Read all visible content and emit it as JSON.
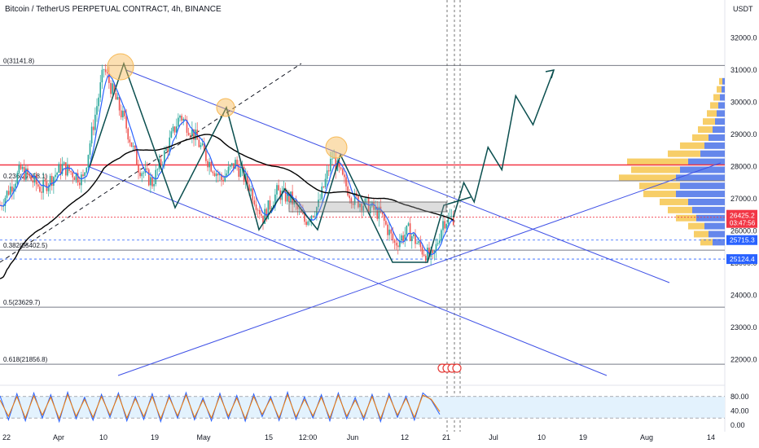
{
  "header": {
    "title": "Bitcoin / TetherUS PERPETUAL CONTRACT, 4h, BINANCE"
  },
  "price_axis": {
    "unit": "USDT"
  },
  "colors": {
    "fib_line": "#787b86",
    "fib_text": "#131722",
    "channel": "#3f51e6",
    "pattern": "#0b4f4f",
    "ma": "#000000",
    "fast_ma": "#2962ff",
    "resistance": "#f23645",
    "price_badge": "#f23645",
    "level_badge": "#2962ff",
    "candle_up": "#26a69a",
    "candle_down": "#ef5350",
    "circle": "#f7b955",
    "vp_up": "#f5c242",
    "vp_down": "#4a72e8",
    "stoch_k": "#2962ff",
    "stoch_d": "#f57c00",
    "stoch_band": "#e3f2fd"
  },
  "chart_data": [
    {
      "type": "candlestick",
      "title": "Bitcoin / TetherUS PERPETUAL CONTRACT, 4h, BINANCE",
      "ylabel": "USDT",
      "ylim": [
        21500,
        32500
      ],
      "y_ticks": [
        22000,
        23000,
        24000,
        25000,
        26000,
        27000,
        28000,
        29000,
        30000,
        31000,
        32000
      ],
      "x_tick_labels": [
        "22",
        "Apr",
        "10",
        "19",
        "May",
        "15",
        "12:00",
        "Jun",
        "12",
        "21",
        "Jul",
        "10",
        "19",
        "Aug",
        "14"
      ],
      "fib_levels": [
        {
          "label": "0(31141.8)",
          "value": 31141.8
        },
        {
          "label": "0.236(27558.1)",
          "value": 27558.1
        },
        {
          "label": "0.382(25402.5)",
          "value": 25402.5
        },
        {
          "label": "0.5(23629.7)",
          "value": 23629.7
        },
        {
          "label": "0.618(21856.8)",
          "value": 21856.8
        }
      ],
      "price_labels": [
        {
          "label": "26425.2",
          "sub": "03:47:56",
          "value": 26425.2
        },
        {
          "label": "25715.3",
          "value": 25715.3
        },
        {
          "label": "25124.4",
          "value": 25124.4
        }
      ],
      "resistance_level": 28050,
      "price_path": [
        [
          0,
          26800
        ],
        [
          6,
          27900
        ],
        [
          12,
          27300
        ],
        [
          18,
          28000
        ],
        [
          24,
          27600
        ],
        [
          30,
          31050
        ],
        [
          33,
          30200
        ],
        [
          36,
          29400
        ],
        [
          40,
          28000
        ],
        [
          44,
          27500
        ],
        [
          48,
          28500
        ],
        [
          52,
          29600
        ],
        [
          56,
          29000
        ],
        [
          60,
          28200
        ],
        [
          64,
          27600
        ],
        [
          68,
          28100
        ],
        [
          72,
          27400
        ],
        [
          76,
          26400
        ],
        [
          80,
          27200
        ],
        [
          84,
          27000
        ],
        [
          88,
          26300
        ],
        [
          92,
          26800
        ],
        [
          96,
          28300
        ],
        [
          99,
          27600
        ],
        [
          102,
          27000
        ],
        [
          106,
          26800
        ],
        [
          110,
          26500
        ],
        [
          114,
          25600
        ],
        [
          118,
          26000
        ],
        [
          122,
          25400
        ],
        [
          125,
          25100
        ],
        [
          128,
          26300
        ],
        [
          131,
          26425
        ]
      ],
      "projection": [
        [
          131,
          26425
        ],
        [
          134,
          27500
        ],
        [
          137,
          26900
        ],
        [
          141,
          28600
        ],
        [
          145,
          27900
        ],
        [
          149,
          30200
        ],
        [
          154,
          29300
        ],
        [
          160,
          31000
        ]
      ]
    },
    {
      "type": "line",
      "title": "",
      "ylim": [
        0,
        100
      ],
      "y_ticks": [
        0,
        40,
        80
      ],
      "y_tick_labels": [
        "0.00",
        "40.00",
        "80.00"
      ],
      "band": [
        20,
        80
      ],
      "series": [
        {
          "values": [
            82,
            15,
            88,
            12,
            90,
            20,
            85,
            10,
            92,
            18,
            78,
            14,
            86,
            22,
            90,
            12,
            80,
            16,
            88,
            10,
            84,
            20,
            91,
            15,
            76,
            12,
            89,
            18,
            83,
            11,
            87,
            24,
            80,
            13,
            92,
            16,
            79,
            20,
            85,
            12,
            90,
            18,
            77,
            15,
            86,
            10,
            88,
            22,
            81,
            14,
            90,
            70,
            30
          ]
        },
        {
          "values": [
            70,
            25,
            80,
            20,
            82,
            28,
            78,
            18,
            85,
            25,
            72,
            22,
            80,
            28,
            84,
            20,
            74,
            24,
            80,
            18,
            78,
            26,
            84,
            22,
            70,
            20,
            82,
            25,
            76,
            18,
            80,
            30,
            74,
            20,
            85,
            23,
            72,
            26,
            78,
            20,
            84,
            25,
            70,
            22,
            80,
            18,
            82,
            28,
            75,
            22,
            84,
            72,
            38
          ]
        }
      ]
    }
  ]
}
